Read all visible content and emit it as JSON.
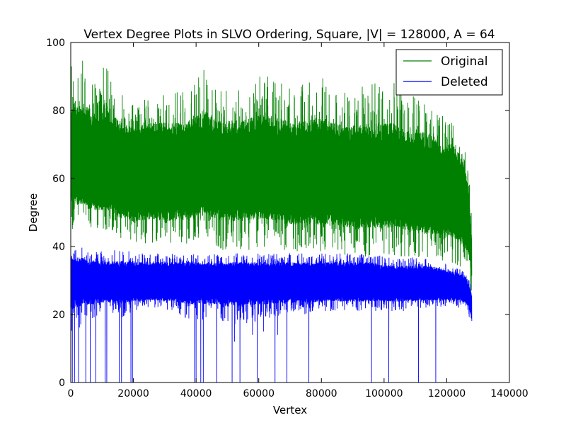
{
  "chart_data": {
    "type": "line",
    "title": "Vertex Degree Plots in SLVO Ordering, Square, |V| = 128000, A = 64",
    "xlabel": "Vertex",
    "ylabel": "Degree",
    "xlim": [
      0,
      140000
    ],
    "ylim": [
      0,
      100
    ],
    "xticks": [
      0,
      20000,
      40000,
      60000,
      80000,
      100000,
      120000,
      140000
    ],
    "xtick_labels": [
      "0",
      "20000",
      "40000",
      "60000",
      "80000",
      "100000",
      "120000",
      "140000"
    ],
    "yticks": [
      0,
      20,
      40,
      60,
      80,
      100
    ],
    "ytick_labels": [
      "0",
      "20",
      "40",
      "60",
      "80",
      "100"
    ],
    "grid": false,
    "legend_position": "top-right",
    "series": [
      {
        "name": "Original",
        "color": "#008000",
        "x": [
          0,
          2000,
          4000,
          6000,
          8000,
          10000,
          11000,
          12000,
          14000,
          16000,
          18000,
          20000,
          24000,
          28000,
          32000,
          36000,
          40000,
          42000,
          44000,
          48000,
          52000,
          56000,
          60000,
          64000,
          68000,
          72000,
          76000,
          80000,
          84000,
          88000,
          92000,
          96000,
          100000,
          104000,
          108000,
          112000,
          116000,
          120000,
          124000,
          126000,
          127000,
          128000
        ],
        "values_max": [
          97,
          96,
          95,
          90,
          88,
          89,
          99,
          92,
          88,
          86,
          83,
          82,
          84,
          85,
          85,
          86,
          88,
          94,
          89,
          86,
          87,
          88,
          90,
          90,
          88,
          87,
          89,
          91,
          87,
          86,
          87,
          88,
          89,
          88,
          84,
          85,
          80,
          78,
          74,
          68,
          62,
          48
        ],
        "values_typical_high": [
          78,
          76,
          76,
          75,
          74,
          74,
          76,
          74,
          73,
          72,
          72,
          71,
          72,
          72,
          72,
          72,
          73,
          74,
          73,
          72,
          72,
          72,
          73,
          72,
          72,
          71,
          71,
          72,
          71,
          70,
          70,
          70,
          70,
          70,
          69,
          68,
          67,
          66,
          64,
          60,
          54,
          40
        ],
        "values_typical_low": [
          58,
          56,
          55,
          54,
          53,
          53,
          54,
          53,
          52,
          51,
          51,
          50,
          51,
          51,
          51,
          51,
          52,
          53,
          52,
          51,
          51,
          51,
          52,
          51,
          50,
          50,
          50,
          50,
          50,
          49,
          49,
          49,
          49,
          49,
          48,
          47,
          47,
          46,
          45,
          43,
          40,
          32
        ],
        "values_min": [
          42,
          44,
          46,
          44,
          45,
          45,
          44,
          45,
          43,
          42,
          42,
          40,
          41,
          41,
          39,
          40,
          41,
          45,
          42,
          39,
          39,
          39,
          39,
          40,
          39,
          38,
          38,
          38,
          38,
          37,
          37,
          37,
          37,
          37,
          36,
          36,
          36,
          35,
          34,
          33,
          30,
          25
        ]
      },
      {
        "name": "Deleted",
        "color": "#0000ff",
        "x": [
          0,
          2000,
          4000,
          6000,
          8000,
          10000,
          12000,
          14000,
          16000,
          18000,
          20000,
          24000,
          28000,
          32000,
          36000,
          40000,
          44000,
          48000,
          52000,
          56000,
          60000,
          64000,
          68000,
          72000,
          76000,
          80000,
          84000,
          88000,
          92000,
          96000,
          100000,
          104000,
          108000,
          112000,
          116000,
          120000,
          124000,
          126000,
          127000,
          128000
        ],
        "values_max": [
          40,
          40,
          40,
          39,
          39,
          39,
          39,
          39,
          39,
          39,
          38,
          38,
          38,
          38,
          38,
          38,
          38,
          38,
          38,
          38,
          38,
          38,
          38,
          38,
          38,
          38,
          38,
          38,
          38,
          38,
          37,
          37,
          37,
          37,
          36,
          35,
          34,
          33,
          31,
          28
        ],
        "values_typical_high": [
          35,
          35,
          35,
          34,
          34,
          34,
          34,
          34,
          34,
          34,
          34,
          34,
          34,
          34,
          34,
          34,
          34,
          34,
          34,
          34,
          34,
          34,
          34,
          34,
          34,
          34,
          34,
          34,
          34,
          34,
          33,
          33,
          33,
          33,
          33,
          32,
          31,
          30,
          28,
          25
        ],
        "values_typical_low": [
          25,
          25,
          25,
          25,
          25,
          25,
          25,
          25,
          25,
          25,
          25,
          25,
          25,
          25,
          25,
          25,
          25,
          25,
          25,
          25,
          25,
          25,
          25,
          25,
          25,
          25,
          25,
          25,
          25,
          25,
          25,
          25,
          25,
          25,
          25,
          25,
          25,
          24,
          23,
          20
        ],
        "values_min": [
          12,
          15,
          18,
          18,
          19,
          20,
          20,
          20,
          19,
          20,
          21,
          22,
          22,
          21,
          19,
          18,
          19,
          18,
          17,
          17,
          18,
          19,
          19,
          20,
          20,
          21,
          21,
          21,
          21,
          21,
          21,
          21,
          21,
          22,
          22,
          22,
          22,
          21,
          20,
          13
        ],
        "drop_to_zero_x": [
          500,
          1200,
          2500,
          4800,
          6200,
          8000,
          11000,
          11500,
          15500,
          16200,
          19200,
          19700,
          39500,
          40000,
          41500,
          42300,
          46600,
          51500,
          52300,
          54000,
          58000,
          59500,
          61500,
          65200,
          66000,
          69000,
          76000,
          96000,
          101500,
          111000,
          116500
        ],
        "drop_floor": [
          0,
          0,
          0,
          0,
          0,
          0,
          0,
          0,
          0,
          0,
          0,
          0,
          0,
          0,
          0,
          0,
          0,
          0,
          12,
          0,
          14,
          0,
          15,
          0,
          14,
          0,
          0,
          0,
          0,
          0,
          0
        ]
      }
    ]
  }
}
